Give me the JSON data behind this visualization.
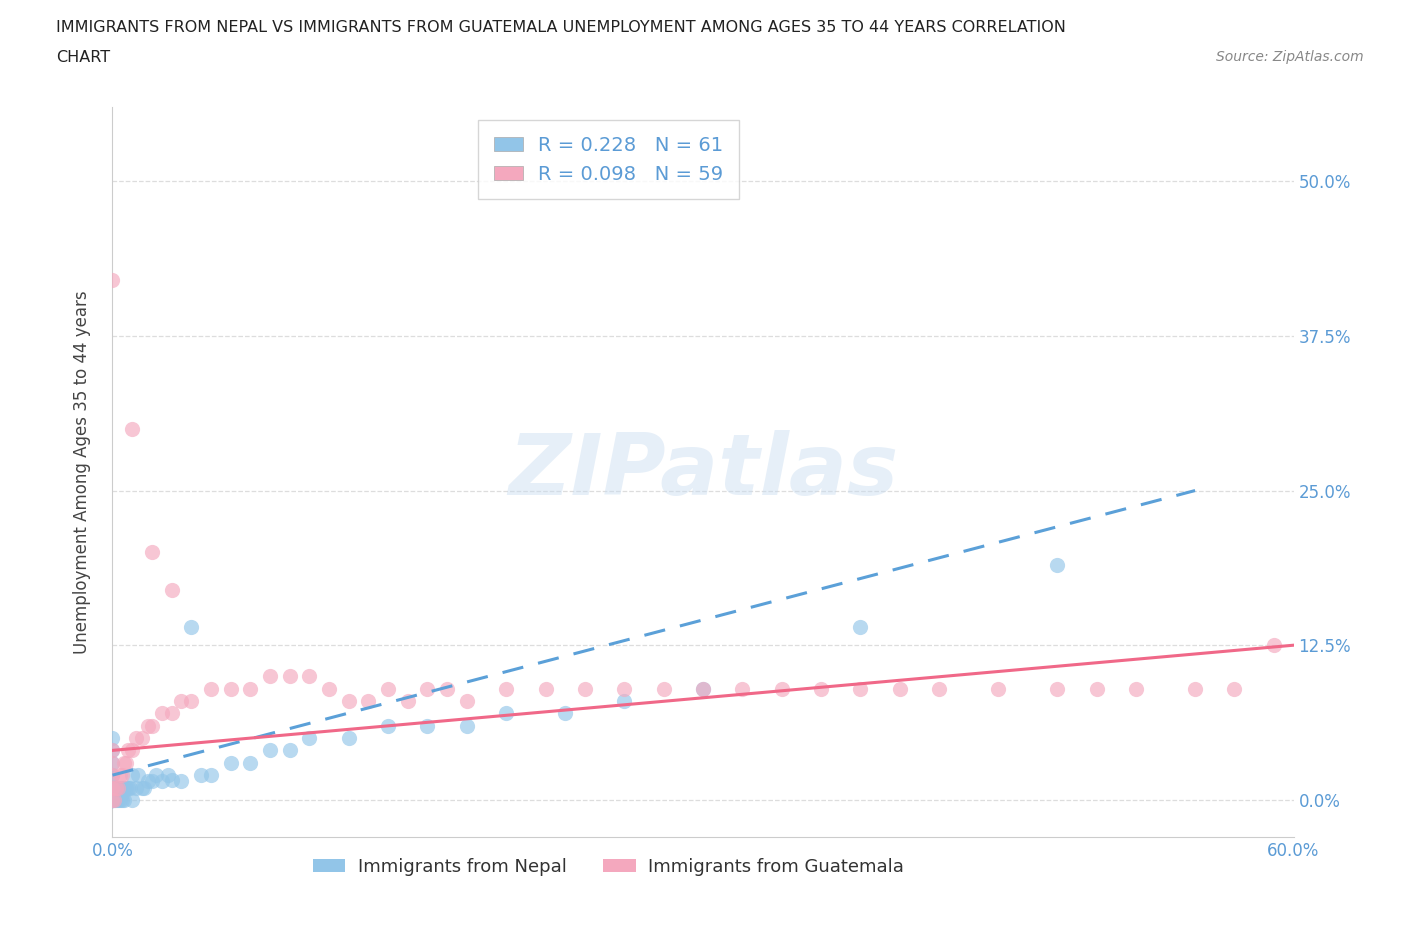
{
  "title_line1": "IMMIGRANTS FROM NEPAL VS IMMIGRANTS FROM GUATEMALA UNEMPLOYMENT AMONG AGES 35 TO 44 YEARS CORRELATION",
  "title_line2": "CHART",
  "source_text": "Source: ZipAtlas.com",
  "ylabel": "Unemployment Among Ages 35 to 44 years",
  "legend_label1": "Immigrants from Nepal",
  "legend_label2": "Immigrants from Guatemala",
  "R1": 0.228,
  "N1": 61,
  "R2": 0.098,
  "N2": 59,
  "xlim": [
    0.0,
    0.6
  ],
  "ylim": [
    -0.03,
    0.56
  ],
  "xticks": [
    0.0,
    0.1,
    0.2,
    0.3,
    0.4,
    0.5,
    0.6
  ],
  "yticks": [
    0.0,
    0.125,
    0.25,
    0.375,
    0.5
  ],
  "right_ytick_labels": [
    "0.0%",
    "12.5%",
    "25.0%",
    "37.5%",
    "50.0%"
  ],
  "left_ytick_labels": [
    "",
    "",
    "",
    "",
    ""
  ],
  "xtick_labels_bottom": [
    "0.0%",
    "",
    "",
    "",
    "",
    "",
    "60.0%"
  ],
  "color_nepal": "#92C5E8",
  "color_guatemala": "#F4A8BE",
  "color_nepal_line": "#5BA0D8",
  "color_guatemala_line": "#F06888",
  "watermark_text": "ZIPatlas",
  "tick_color": "#5B9BD5",
  "title_color": "#222222",
  "source_color": "#888888",
  "grid_color": "#DDDDDD",
  "nepal_x": [
    0.0,
    0.0,
    0.0,
    0.0,
    0.0,
    0.0,
    0.0,
    0.0,
    0.0,
    0.0,
    0.0,
    0.0,
    0.0,
    0.0,
    0.001,
    0.001,
    0.002,
    0.002,
    0.003,
    0.003,
    0.004,
    0.004,
    0.005,
    0.005,
    0.005,
    0.006,
    0.006,
    0.007,
    0.008,
    0.009,
    0.01,
    0.01,
    0.012,
    0.013,
    0.015,
    0.016,
    0.018,
    0.02,
    0.022,
    0.025,
    0.028,
    0.03,
    0.035,
    0.04,
    0.045,
    0.05,
    0.06,
    0.07,
    0.08,
    0.09,
    0.1,
    0.12,
    0.14,
    0.16,
    0.18,
    0.2,
    0.23,
    0.26,
    0.3,
    0.38,
    0.48
  ],
  "nepal_y": [
    0.0,
    0.0,
    0.0,
    0.0,
    0.0,
    0.0,
    0.01,
    0.01,
    0.01,
    0.02,
    0.02,
    0.03,
    0.04,
    0.05,
    0.0,
    0.01,
    0.0,
    0.01,
    0.0,
    0.01,
    0.0,
    0.01,
    0.0,
    0.005,
    0.01,
    0.0,
    0.01,
    0.01,
    0.01,
    0.01,
    0.0,
    0.02,
    0.01,
    0.02,
    0.01,
    0.01,
    0.015,
    0.015,
    0.02,
    0.015,
    0.02,
    0.016,
    0.015,
    0.14,
    0.02,
    0.02,
    0.03,
    0.03,
    0.04,
    0.04,
    0.05,
    0.05,
    0.06,
    0.06,
    0.06,
    0.07,
    0.07,
    0.08,
    0.09,
    0.14,
    0.19
  ],
  "guatemala_x": [
    0.0,
    0.0,
    0.0,
    0.0,
    0.0,
    0.001,
    0.002,
    0.003,
    0.004,
    0.005,
    0.006,
    0.007,
    0.008,
    0.01,
    0.012,
    0.015,
    0.018,
    0.02,
    0.025,
    0.03,
    0.035,
    0.04,
    0.05,
    0.06,
    0.07,
    0.08,
    0.09,
    0.1,
    0.11,
    0.12,
    0.13,
    0.14,
    0.15,
    0.16,
    0.17,
    0.18,
    0.2,
    0.22,
    0.24,
    0.26,
    0.28,
    0.3,
    0.32,
    0.34,
    0.36,
    0.38,
    0.4,
    0.42,
    0.45,
    0.48,
    0.5,
    0.52,
    0.55,
    0.57,
    0.59,
    0.0,
    0.01,
    0.02,
    0.03
  ],
  "guatemala_y": [
    0.0,
    0.01,
    0.02,
    0.03,
    0.04,
    0.0,
    0.01,
    0.01,
    0.02,
    0.02,
    0.03,
    0.03,
    0.04,
    0.04,
    0.05,
    0.05,
    0.06,
    0.06,
    0.07,
    0.07,
    0.08,
    0.08,
    0.09,
    0.09,
    0.09,
    0.1,
    0.1,
    0.1,
    0.09,
    0.08,
    0.08,
    0.09,
    0.08,
    0.09,
    0.09,
    0.08,
    0.09,
    0.09,
    0.09,
    0.09,
    0.09,
    0.09,
    0.09,
    0.09,
    0.09,
    0.09,
    0.09,
    0.09,
    0.09,
    0.09,
    0.09,
    0.09,
    0.09,
    0.09,
    0.125,
    0.42,
    0.3,
    0.2,
    0.17
  ]
}
